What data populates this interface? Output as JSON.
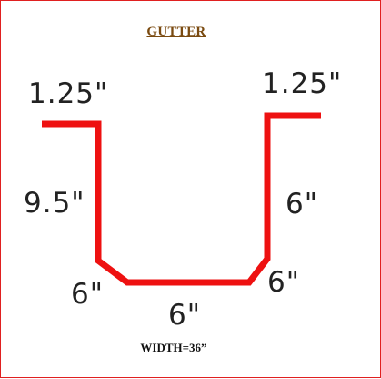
{
  "diagram": {
    "title": "GUTTER",
    "line_color": "#ee1111",
    "labels": {
      "left_lip": "1.25\"",
      "right_lip": "1.25\"",
      "left_side": "9.5\"",
      "right_side": "6\"",
      "left_bevel": "6\"",
      "right_bevel": "6\"",
      "bottom": "6\""
    },
    "width_note": "WIDTH=36”"
  }
}
